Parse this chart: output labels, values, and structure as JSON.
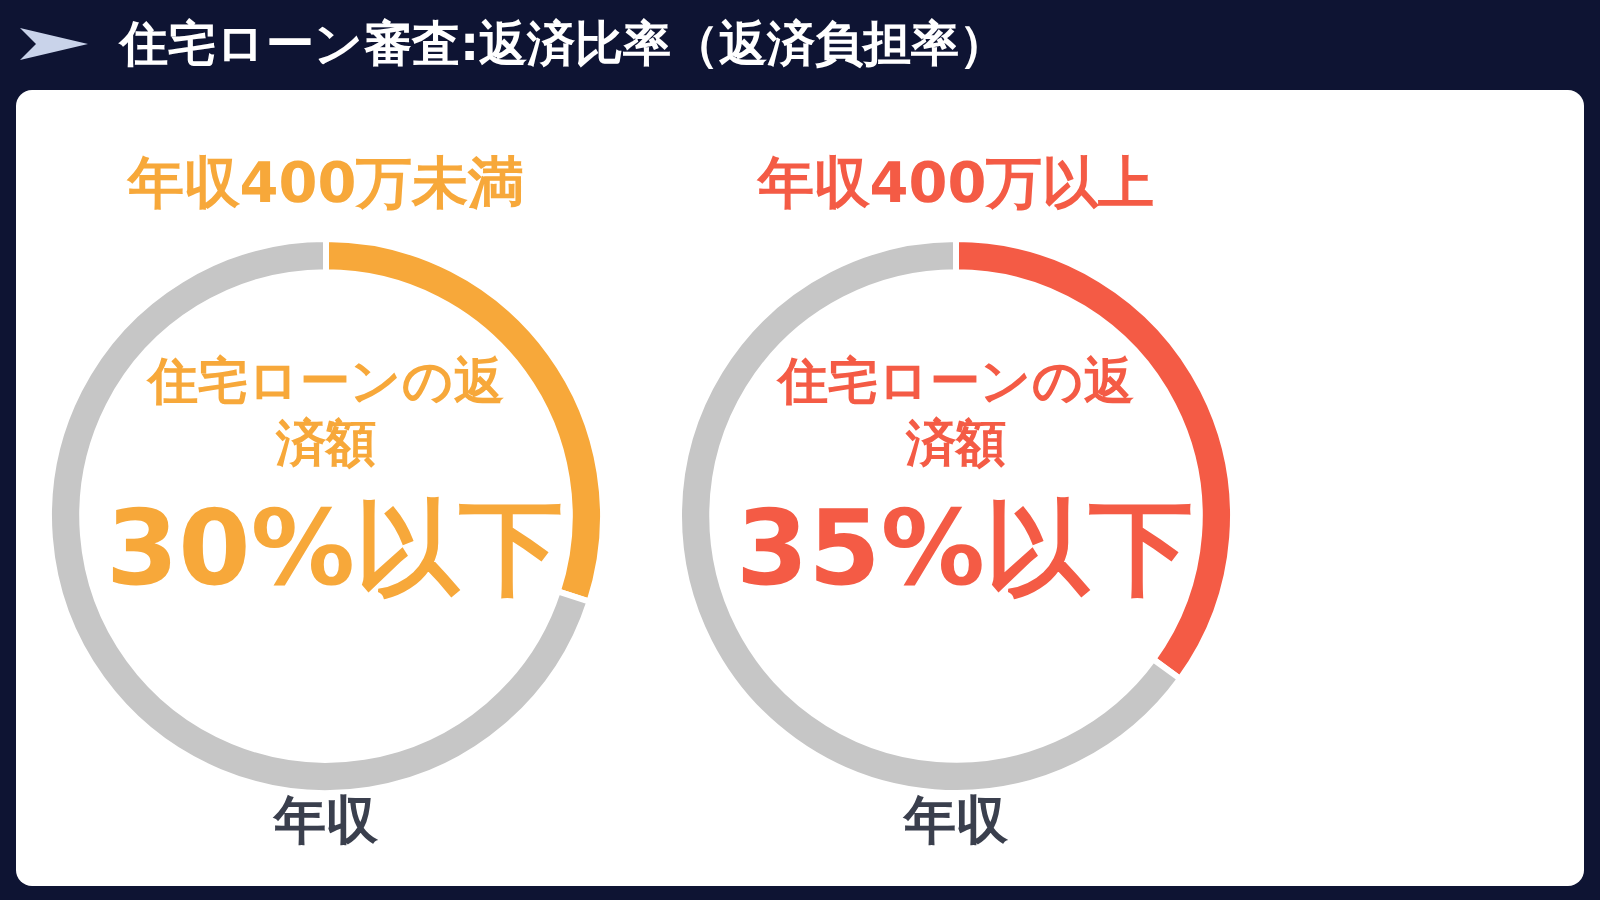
{
  "chart_data": [
    {
      "type": "donut",
      "title": "住宅ローン審査:返済比率（返済負担率）",
      "subtitle": "年収400万未満",
      "categories": [
        "住宅ローンの返済額",
        "年収"
      ],
      "values": [
        30,
        70
      ],
      "colors": [
        "#f7a83a",
        "#c6c6c6"
      ],
      "annotations": [
        "30%以下"
      ],
      "legend": false
    },
    {
      "type": "donut",
      "subtitle": "年収400万以上",
      "categories": [
        "住宅ローンの返済額",
        "年収"
      ],
      "values": [
        35,
        65
      ],
      "colors": [
        "#f45b45",
        "#c6c6c6"
      ],
      "annotations": [
        "35%以下"
      ],
      "legend": false
    }
  ]
}
